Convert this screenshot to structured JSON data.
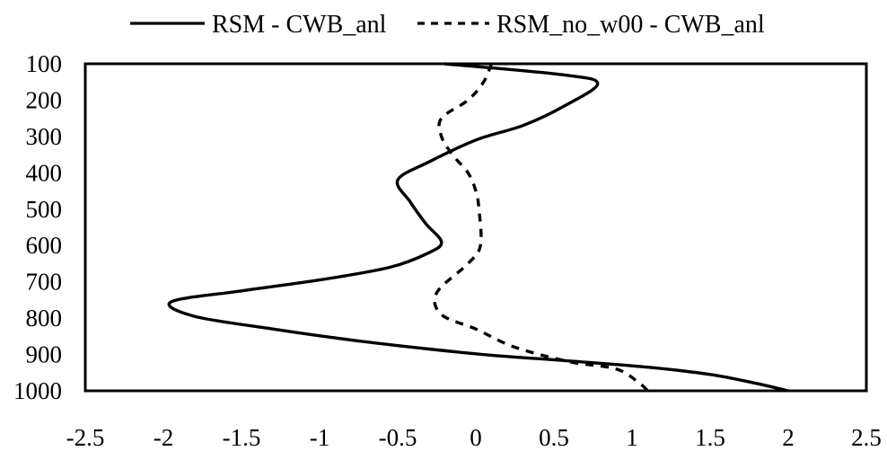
{
  "chart_data": {
    "type": "line",
    "title": "",
    "xlabel": "",
    "ylabel": "",
    "xlim": [
      -2.5,
      2.5
    ],
    "ylim": [
      100,
      1000
    ],
    "y_inverted": true,
    "x_ticks": [
      "-2.5",
      "-2",
      "-1.5",
      "-1",
      "-0.5",
      "0",
      "0.5",
      "1",
      "1.5",
      "2",
      "2.5"
    ],
    "y_ticks": [
      "100",
      "200",
      "300",
      "400",
      "500",
      "600",
      "700",
      "800",
      "900",
      "1000"
    ],
    "grid": false,
    "legend_position": "top",
    "series": [
      {
        "name": "RSM - CWB_anl",
        "style": "solid",
        "color": "#000000",
        "points": [
          {
            "x": -0.2,
            "y": 100
          },
          {
            "x": 0.55,
            "y": 130
          },
          {
            "x": 0.78,
            "y": 155
          },
          {
            "x": 0.55,
            "y": 220
          },
          {
            "x": 0.3,
            "y": 270
          },
          {
            "x": 0.0,
            "y": 310
          },
          {
            "x": -0.3,
            "y": 370
          },
          {
            "x": -0.5,
            "y": 420
          },
          {
            "x": -0.42,
            "y": 480
          },
          {
            "x": -0.32,
            "y": 540
          },
          {
            "x": -0.22,
            "y": 590
          },
          {
            "x": -0.3,
            "y": 620
          },
          {
            "x": -0.55,
            "y": 660
          },
          {
            "x": -1.0,
            "y": 695
          },
          {
            "x": -1.5,
            "y": 725
          },
          {
            "x": -1.95,
            "y": 755
          },
          {
            "x": -1.8,
            "y": 795
          },
          {
            "x": -1.3,
            "y": 830
          },
          {
            "x": -0.8,
            "y": 860
          },
          {
            "x": -0.3,
            "y": 885
          },
          {
            "x": 0.1,
            "y": 902
          },
          {
            "x": 0.6,
            "y": 918
          },
          {
            "x": 1.1,
            "y": 935
          },
          {
            "x": 1.5,
            "y": 955
          },
          {
            "x": 1.8,
            "y": 980
          },
          {
            "x": 2.0,
            "y": 1000
          }
        ]
      },
      {
        "name": "RSM_no_w00 - CWB_anl",
        "style": "dashed",
        "color": "#000000",
        "points": [
          {
            "x": 0.1,
            "y": 100
          },
          {
            "x": 0.05,
            "y": 150
          },
          {
            "x": -0.05,
            "y": 200
          },
          {
            "x": -0.22,
            "y": 250
          },
          {
            "x": -0.22,
            "y": 300
          },
          {
            "x": -0.15,
            "y": 350
          },
          {
            "x": -0.05,
            "y": 400
          },
          {
            "x": 0.0,
            "y": 450
          },
          {
            "x": 0.02,
            "y": 500
          },
          {
            "x": 0.03,
            "y": 600
          },
          {
            "x": -0.05,
            "y": 650
          },
          {
            "x": -0.25,
            "y": 730
          },
          {
            "x": -0.22,
            "y": 790
          },
          {
            "x": 0.0,
            "y": 830
          },
          {
            "x": 0.25,
            "y": 880
          },
          {
            "x": 0.6,
            "y": 920
          },
          {
            "x": 0.9,
            "y": 940
          },
          {
            "x": 1.05,
            "y": 980
          },
          {
            "x": 1.1,
            "y": 1000
          }
        ]
      }
    ]
  }
}
